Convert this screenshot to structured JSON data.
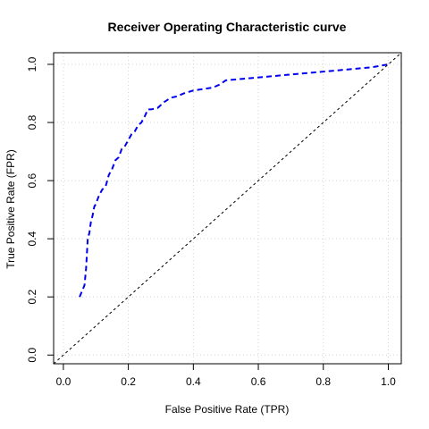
{
  "chart_data": {
    "type": "line",
    "title": "Receiver Operating Characteristic curve",
    "xlabel": "False Positive Rate (TPR)",
    "ylabel": "True Positive Rate (FPR)",
    "xlim": [
      -0.03,
      1.04
    ],
    "ylim": [
      -0.03,
      1.04
    ],
    "x_ticks": [
      0.0,
      0.2,
      0.4,
      0.6,
      0.8,
      1.0
    ],
    "x_tick_labels": [
      "0.0",
      "0.2",
      "0.4",
      "0.6",
      "0.8",
      "1.0"
    ],
    "y_ticks": [
      0.0,
      0.2,
      0.4,
      0.6,
      0.8,
      1.0
    ],
    "y_tick_labels": [
      "0.0",
      "0.2",
      "0.4",
      "0.6",
      "0.8",
      "1.0"
    ],
    "grid": true,
    "series": [
      {
        "style": "dashed",
        "color": "#0000ee",
        "x": [
          0.05,
          0.065,
          0.07,
          0.075,
          0.08,
          0.085,
          0.09,
          0.095,
          0.1,
          0.11,
          0.12,
          0.13,
          0.14,
          0.15,
          0.16,
          0.17,
          0.18,
          0.19,
          0.2,
          0.21,
          0.22,
          0.23,
          0.24,
          0.25,
          0.26,
          0.27,
          0.29,
          0.31,
          0.33,
          0.35,
          0.37,
          0.4,
          0.43,
          0.46,
          0.48,
          0.5,
          0.55,
          0.6,
          0.7,
          0.8,
          0.9,
          0.95,
          1.0
        ],
        "y": [
          0.2,
          0.24,
          0.3,
          0.4,
          0.42,
          0.46,
          0.48,
          0.51,
          0.52,
          0.55,
          0.57,
          0.58,
          0.62,
          0.64,
          0.67,
          0.68,
          0.71,
          0.72,
          0.74,
          0.76,
          0.77,
          0.79,
          0.8,
          0.82,
          0.845,
          0.845,
          0.85,
          0.87,
          0.885,
          0.89,
          0.9,
          0.91,
          0.915,
          0.92,
          0.93,
          0.945,
          0.95,
          0.955,
          0.965,
          0.975,
          0.985,
          0.99,
          1.0
        ]
      },
      {
        "style": "dashed",
        "color": "#000000",
        "x": [
          -0.03,
          1.04
        ],
        "y": [
          -0.03,
          1.04
        ]
      }
    ]
  }
}
